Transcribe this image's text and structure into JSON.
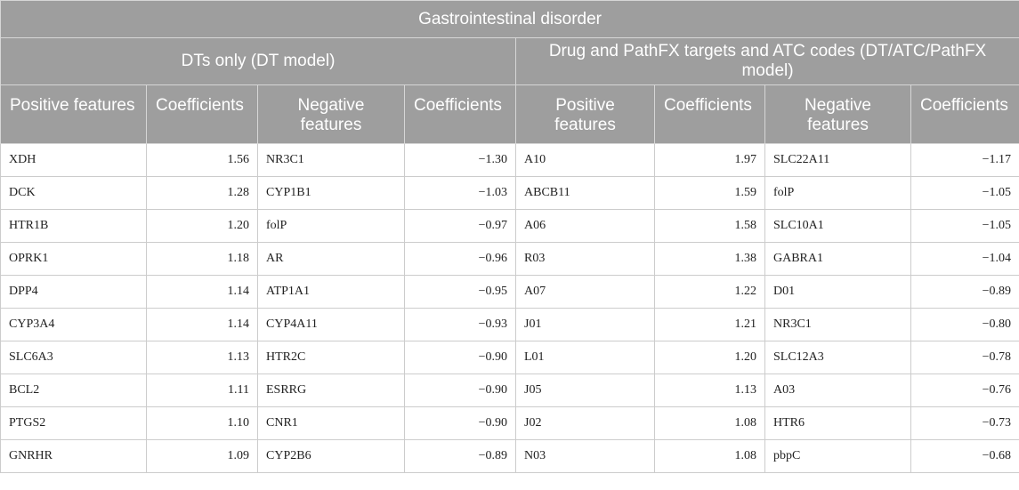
{
  "table": {
    "title": "Gastrointestinal disorder",
    "groups": [
      "DTs only (DT model)",
      "Drug and PathFX targets and ATC codes (DT/ATC/PathFX model)"
    ],
    "columns": [
      "Positive features",
      "Coefficients",
      "Negative features",
      "Coefficients",
      "Positive features",
      "Coefficients",
      "Negative features",
      "Coefficients"
    ],
    "rows": [
      [
        "XDH",
        "1.56",
        "NR3C1",
        "−1.30",
        "A10",
        "1.97",
        "SLC22A11",
        "−1.17"
      ],
      [
        "DCK",
        "1.28",
        "CYP1B1",
        "−1.03",
        "ABCB11",
        "1.59",
        "folP",
        "−1.05"
      ],
      [
        "HTR1B",
        "1.20",
        "folP",
        "−0.97",
        "A06",
        "1.58",
        "SLC10A1",
        "−1.05"
      ],
      [
        "OPRK1",
        "1.18",
        "AR",
        "−0.96",
        "R03",
        "1.38",
        "GABRA1",
        "−1.04"
      ],
      [
        "DPP4",
        "1.14",
        "ATP1A1",
        "−0.95",
        "A07",
        "1.22",
        "D01",
        "−0.89"
      ],
      [
        "CYP3A4",
        "1.14",
        "CYP4A11",
        "−0.93",
        "J01",
        "1.21",
        "NR3C1",
        "−0.80"
      ],
      [
        "SLC6A3",
        "1.13",
        "HTR2C",
        "−0.90",
        "L01",
        "1.20",
        "SLC12A3",
        "−0.78"
      ],
      [
        "BCL2",
        "1.11",
        "ESRRG",
        "−0.90",
        "J05",
        "1.13",
        "A03",
        "−0.76"
      ],
      [
        "PTGS2",
        "1.10",
        "CNR1",
        "−0.90",
        "J02",
        "1.08",
        "HTR6",
        "−0.73"
      ],
      [
        "GNRHR",
        "1.09",
        "CYP2B6",
        "−0.89",
        "N03",
        "1.08",
        "pbpC",
        "−0.68"
      ]
    ]
  }
}
